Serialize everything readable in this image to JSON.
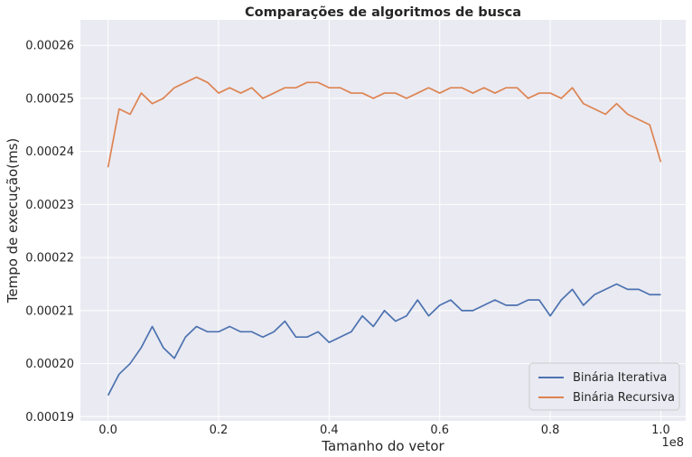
{
  "chart_data": {
    "type": "line",
    "title": "Comparações de algoritmos de busca",
    "xlabel": "Tamanho do vetor",
    "ylabel": "Tempo de execução(ms)",
    "x_offset_label": "1e8",
    "xlim": [
      -0.05,
      1.045
    ],
    "ylim": [
      0.0001892,
      0.0002648
    ],
    "x_ticks": [
      0.0,
      0.2,
      0.4,
      0.6,
      0.8,
      1.0
    ],
    "x_tick_labels": [
      "0.0",
      "0.2",
      "0.4",
      "0.6",
      "0.8",
      "1.0"
    ],
    "y_ticks": [
      0.00019,
      0.0002,
      0.00021,
      0.00022,
      0.00023,
      0.00024,
      0.00025,
      0.00026
    ],
    "y_tick_labels": [
      "0.00019",
      "0.00020",
      "0.00021",
      "0.00022",
      "0.00023",
      "0.00024",
      "0.00025",
      "0.00026"
    ],
    "grid": true,
    "legend_position": "lower-right",
    "background": "#eaeaf2",
    "x": [
      0.0,
      0.02,
      0.04,
      0.06,
      0.08,
      0.1,
      0.12,
      0.14,
      0.16,
      0.18,
      0.2,
      0.22,
      0.24,
      0.26,
      0.28,
      0.3,
      0.32,
      0.34,
      0.36,
      0.38,
      0.4,
      0.42,
      0.44,
      0.46,
      0.48,
      0.5,
      0.52,
      0.54,
      0.56,
      0.58,
      0.6,
      0.62,
      0.64,
      0.66,
      0.68,
      0.7,
      0.72,
      0.74,
      0.76,
      0.78,
      0.8,
      0.82,
      0.84,
      0.86,
      0.88,
      0.9,
      0.92,
      0.94,
      0.96,
      0.98,
      1.0
    ],
    "series": [
      {
        "name": "Binária Iterativa",
        "color": "#4c72b0",
        "values": [
          0.000194,
          0.000198,
          0.0002,
          0.000203,
          0.000207,
          0.000203,
          0.000201,
          0.000205,
          0.000207,
          0.000206,
          0.000206,
          0.000207,
          0.000206,
          0.000206,
          0.000205,
          0.000206,
          0.000208,
          0.000205,
          0.000205,
          0.000206,
          0.000204,
          0.000205,
          0.000206,
          0.000209,
          0.000207,
          0.00021,
          0.000208,
          0.000209,
          0.000212,
          0.000209,
          0.000211,
          0.000212,
          0.00021,
          0.00021,
          0.000211,
          0.000212,
          0.000211,
          0.000211,
          0.000212,
          0.000212,
          0.000209,
          0.000212,
          0.000214,
          0.000211,
          0.000213,
          0.000214,
          0.000215,
          0.000214,
          0.000214,
          0.000213,
          0.000213
        ]
      },
      {
        "name": "Binária Recursiva",
        "color": "#dd8452",
        "values": [
          0.000237,
          0.000248,
          0.000247,
          0.000251,
          0.000249,
          0.00025,
          0.000252,
          0.000253,
          0.000254,
          0.000253,
          0.000251,
          0.000252,
          0.000251,
          0.000252,
          0.00025,
          0.000251,
          0.000252,
          0.000252,
          0.000253,
          0.000253,
          0.000252,
          0.000252,
          0.000251,
          0.000251,
          0.00025,
          0.000251,
          0.000251,
          0.00025,
          0.000251,
          0.000252,
          0.000251,
          0.000252,
          0.000252,
          0.000251,
          0.000252,
          0.000251,
          0.000252,
          0.000252,
          0.00025,
          0.000251,
          0.000251,
          0.00025,
          0.000252,
          0.000249,
          0.000248,
          0.000247,
          0.000249,
          0.000247,
          0.000246,
          0.000245,
          0.000238
        ]
      }
    ]
  }
}
